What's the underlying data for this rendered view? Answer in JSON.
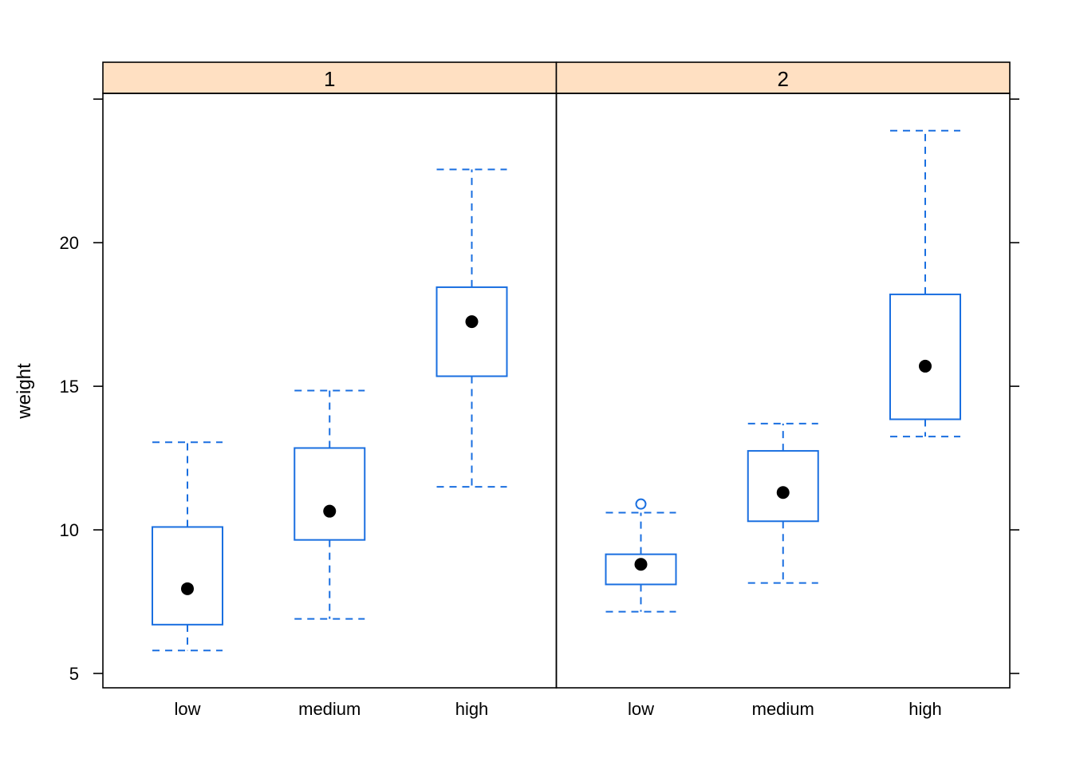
{
  "chart_data": {
    "type": "boxplot",
    "ylabel": "weight",
    "categories": [
      "low",
      "medium",
      "high"
    ],
    "ylim": [
      4.5,
      25.2
    ],
    "yticks": [
      5,
      10,
      15,
      20
    ],
    "colors": {
      "box": "#1a6fe0",
      "median_dot": "#000000",
      "strip_bg": "#ffe0c2",
      "frame": "#000000"
    },
    "panels": [
      {
        "strip": "1",
        "boxes": [
          {
            "category": "low",
            "whisker_low": 5.8,
            "q1": 6.7,
            "median": 7.95,
            "q3": 10.1,
            "whisker_high": 13.05,
            "outliers": []
          },
          {
            "category": "medium",
            "whisker_low": 6.9,
            "q1": 9.65,
            "median": 10.65,
            "q3": 12.85,
            "whisker_high": 14.85,
            "outliers": []
          },
          {
            "category": "high",
            "whisker_low": 11.5,
            "q1": 15.35,
            "median": 17.25,
            "q3": 18.45,
            "whisker_high": 22.55,
            "outliers": []
          }
        ]
      },
      {
        "strip": "2",
        "boxes": [
          {
            "category": "low",
            "whisker_low": 7.15,
            "q1": 8.1,
            "median": 8.8,
            "q3": 9.15,
            "whisker_high": 10.6,
            "outliers": [
              10.9
            ]
          },
          {
            "category": "medium",
            "whisker_low": 8.15,
            "q1": 10.3,
            "median": 11.3,
            "q3": 12.75,
            "whisker_high": 13.7,
            "outliers": []
          },
          {
            "category": "high",
            "whisker_low": 13.25,
            "q1": 13.85,
            "median": 15.7,
            "q3": 18.2,
            "whisker_high": 23.9,
            "outliers": []
          }
        ]
      }
    ]
  }
}
